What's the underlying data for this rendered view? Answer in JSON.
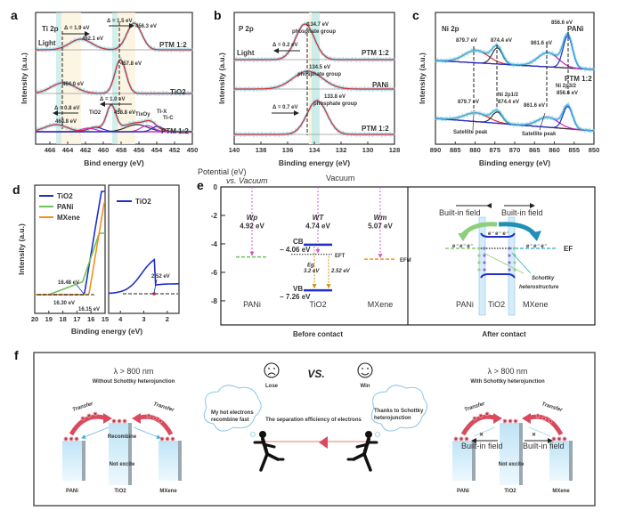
{
  "chart_data": [
    {
      "panel": "a",
      "type": "line",
      "title": "Ti 2p",
      "xlabel": "Bind energy (eV)",
      "ylabel": "Intensity (a.u.)",
      "xlim": [
        467,
        450
      ],
      "xticks": [
        466,
        464,
        462,
        460,
        458,
        456,
        454,
        452,
        450
      ],
      "light_label": "Light",
      "series": [
        {
          "name": "PTM 1:2",
          "condition": "Light",
          "peaks": [
            {
              "x": 462.1,
              "label": "462.1 eV"
            },
            {
              "x": 456.3,
              "label": "456.3 eV"
            }
          ]
        },
        {
          "name": "TiO2",
          "peaks": [
            {
              "x": 464.0,
              "label": "464.0 eV"
            },
            {
              "x": 457.8,
              "label": "457.8 eV"
            }
          ]
        },
        {
          "name": "PTM 1:2",
          "peaks": [
            {
              "x": 464.8,
              "label": "464.8 eV"
            },
            {
              "x": 458.8,
              "label": "458.8 eV"
            }
          ]
        }
      ],
      "annotations": [
        "Δ = 1.9 eV",
        "Δ = 1.5 eV",
        "Δ = 1.0 eV",
        "Δ = 0.8 eV",
        "TiO2",
        "TixOy",
        "Ti-X",
        "Ti-C"
      ]
    },
    {
      "panel": "b",
      "type": "line",
      "title": "P 2p",
      "xlabel": "Binding energy (eV)",
      "ylabel": "Intensity (a.u.)",
      "xlim": [
        140,
        128
      ],
      "xticks": [
        140,
        138,
        136,
        134,
        132,
        130,
        128
      ],
      "light_label": "Light",
      "series": [
        {
          "name": "PTM 1:2",
          "condition": "Light",
          "peaks": [
            {
              "x": 134.7,
              "label": "134.7 eV",
              "note": "phosphate group"
            }
          ]
        },
        {
          "name": "PANi",
          "peaks": [
            {
              "x": 134.5,
              "label": "134.5 eV",
              "note": "phosphate group"
            }
          ]
        },
        {
          "name": "PTM 1:2",
          "peaks": [
            {
              "x": 133.8,
              "label": "133.8 eV",
              "note": "phosphate group"
            }
          ]
        }
      ],
      "annotations": [
        "Δ = 0.2 eV",
        "Δ = 0.7 eV"
      ]
    },
    {
      "panel": "c",
      "type": "line",
      "title": "Ni 2p",
      "xlabel": "Binding energy (eV)",
      "ylabel": "Intensity (a.u.)",
      "xlim": [
        890,
        850
      ],
      "xticks": [
        890,
        885,
        880,
        875,
        870,
        865,
        860,
        855,
        850
      ],
      "series": [
        {
          "name": "PANi",
          "peaks": [
            {
              "x": 879.7,
              "label": "879.7 eV"
            },
            {
              "x": 874.4,
              "label": "874.4 eV"
            },
            {
              "x": 861.6,
              "label": "861.6 eV"
            },
            {
              "x": 856.6,
              "label": "856.6 eV"
            }
          ]
        },
        {
          "name": "PTM 1:2",
          "peaks": [
            {
              "x": 879.7,
              "label": "879.7 eV"
            },
            {
              "x": 874.4,
              "label": "874.4 eV"
            },
            {
              "x": 861.6,
              "label": "861.6 eV"
            },
            {
              "x": 856.6,
              "label": "856.6 eV"
            }
          ]
        }
      ],
      "annotations": [
        "Ni 2p1/2",
        "Ni 2p3/2",
        "Satellite peak",
        "Satellite peak"
      ]
    },
    {
      "panel": "d",
      "type": "line",
      "xlabel": "Binding energy (eV)",
      "ylabel": "Intensity (a.u.)",
      "left": {
        "xlim": [
          20,
          15
        ],
        "xticks": [
          20,
          19,
          18,
          17,
          16,
          15
        ],
        "series": [
          {
            "name": "TiO2",
            "color": "#1f2fc8",
            "cutoff": 16.48
          },
          {
            "name": "PANi",
            "color": "#6fc05a",
            "cutoff": 16.3
          },
          {
            "name": "MXene",
            "color": "#f0901e",
            "cutoff": 16.15
          }
        ],
        "annotations": [
          "16.48 eV",
          "16.30 eV",
          "16.15 eV"
        ]
      },
      "right": {
        "xlim": [
          4.5,
          1.5
        ],
        "xticks": [
          4,
          3,
          2
        ],
        "series": [
          {
            "name": "TiO2",
            "color": "#1f2fc8",
            "edge": 2.52
          }
        ],
        "annotations": [
          "2.52 eV"
        ]
      }
    },
    {
      "panel": "e",
      "type": "diagram",
      "ylabel": "Potential (eV)",
      "ylabel2": "vs. Vacuum",
      "yticks": [
        0,
        -2,
        -4,
        -6,
        -8
      ],
      "ylim": [
        -9.5,
        0
      ],
      "vacuum_label": "Vacuum",
      "materials": [
        {
          "name": "PANi",
          "work_function_label": "Wp",
          "work_function": 4.92,
          "value_label": "4.92 eV",
          "fermi": -4.92,
          "color": "#6fc05a"
        },
        {
          "name": "TiO2",
          "work_function_label": "WT",
          "work_function": 4.74,
          "value_label": "4.74 eV",
          "fermi": -4.74,
          "fermi_label": "EFT",
          "cb": -4.06,
          "cb_label": "CB",
          "cb_value": "− 4.06 eV",
          "vb": -7.26,
          "vb_label": "VB",
          "vb_value": "− 7.26 eV",
          "eg_label": "Eg",
          "eg": "3.2 eV",
          "vb_to_ef": "2.52 eV"
        },
        {
          "name": "MXene",
          "work_function_label": "Wm",
          "work_function": 5.07,
          "value_label": "5.07 eV",
          "fermi": -5.07,
          "fermi_label": "EFM",
          "color": "#f0901e"
        }
      ],
      "before_caption": "Before contact",
      "after_caption": "After contact",
      "after": {
        "built_in_left": "Built-in field",
        "built_in_right": "Built-in field",
        "ef_label": "EF",
        "schottky_label_1": "Schottky",
        "schottky_label_2": "heterostructure",
        "labels": [
          "PANi",
          "TiO2",
          "MXene"
        ]
      }
    }
  ],
  "panel_f": {
    "letter": "f",
    "left": {
      "wavelength": "λ > 800 nm",
      "title": "Without Schottky heterojunction",
      "transfer_left": "Transfer",
      "transfer_right": "Transfer",
      "recombine": "Recombine",
      "not_excite": "Not excite",
      "labels": [
        "PANi",
        "TiO2",
        "MXene"
      ]
    },
    "middle": {
      "lose": "Lose",
      "vs": "VS.",
      "win": "Win",
      "bubble_left": [
        "My hot electrons",
        "recombine fast"
      ],
      "bubble_right": [
        "Thanks to Schottky",
        "heterojunction"
      ],
      "rope_label": "The separation efficiency of electrons"
    },
    "right": {
      "wavelength": "λ > 800 nm",
      "title": "With Schottky heterojunction",
      "transfer_left": "Transfer",
      "transfer_right": "Transfer",
      "builtin_left": "Built-in field",
      "builtin_right": "Built-in field",
      "not_excite": "Not excite",
      "labels": [
        "PANi",
        "TiO2",
        "MXene"
      ]
    }
  }
}
